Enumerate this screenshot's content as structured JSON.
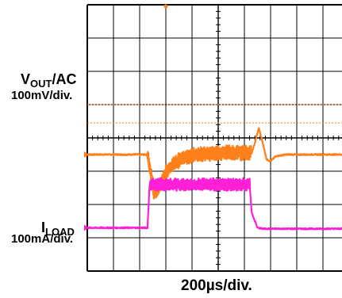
{
  "chart_data": {
    "type": "line",
    "title": "",
    "grid": true,
    "divisions": {
      "horizontal": 10,
      "vertical": 8
    },
    "time_per_div": "200µs/div.",
    "channels": [
      {
        "id": "vout",
        "label_main": "V",
        "label_sub": "OUT",
        "label_suffix": "/AC",
        "scale": "100mV/div.",
        "color": "#ff7f1a",
        "reference_level_div": 3.5,
        "cursor_levels_div": [
          5.0,
          4.45
        ],
        "points_t_div": [
          0,
          2.3,
          2.35,
          2.55,
          2.75,
          3.0,
          3.3,
          3.7,
          4.2,
          5.0,
          6.0,
          6.25,
          6.26,
          6.4,
          6.55,
          6.7,
          6.85,
          7.0,
          7.2,
          7.6,
          8.0
        ],
        "points_v_div": [
          3.5,
          3.5,
          3.3,
          2.35,
          2.55,
          2.95,
          3.25,
          3.4,
          3.5,
          3.55,
          3.55,
          3.55,
          3.5,
          3.85,
          4.3,
          3.85,
          3.35,
          3.3,
          3.45,
          3.5,
          3.5
        ],
        "noise_window_div": [
          2.3,
          6.25
        ],
        "noise_amplitude_div": 0.22
      },
      {
        "id": "iload",
        "label_main": "I",
        "label_sub": "LOAD",
        "label_suffix": "",
        "scale": "100mA/div.",
        "color": "#ff1fd6",
        "points_t_div": [
          0,
          2.3,
          2.38,
          6.2,
          6.28,
          6.5,
          6.7,
          8.0
        ],
        "points_v_div": [
          1.3,
          1.3,
          2.6,
          2.6,
          1.75,
          1.3,
          1.27,
          1.27
        ],
        "noise_window_div": [
          2.38,
          6.2
        ],
        "noise_amplitude_div": 0.18
      }
    ]
  }
}
